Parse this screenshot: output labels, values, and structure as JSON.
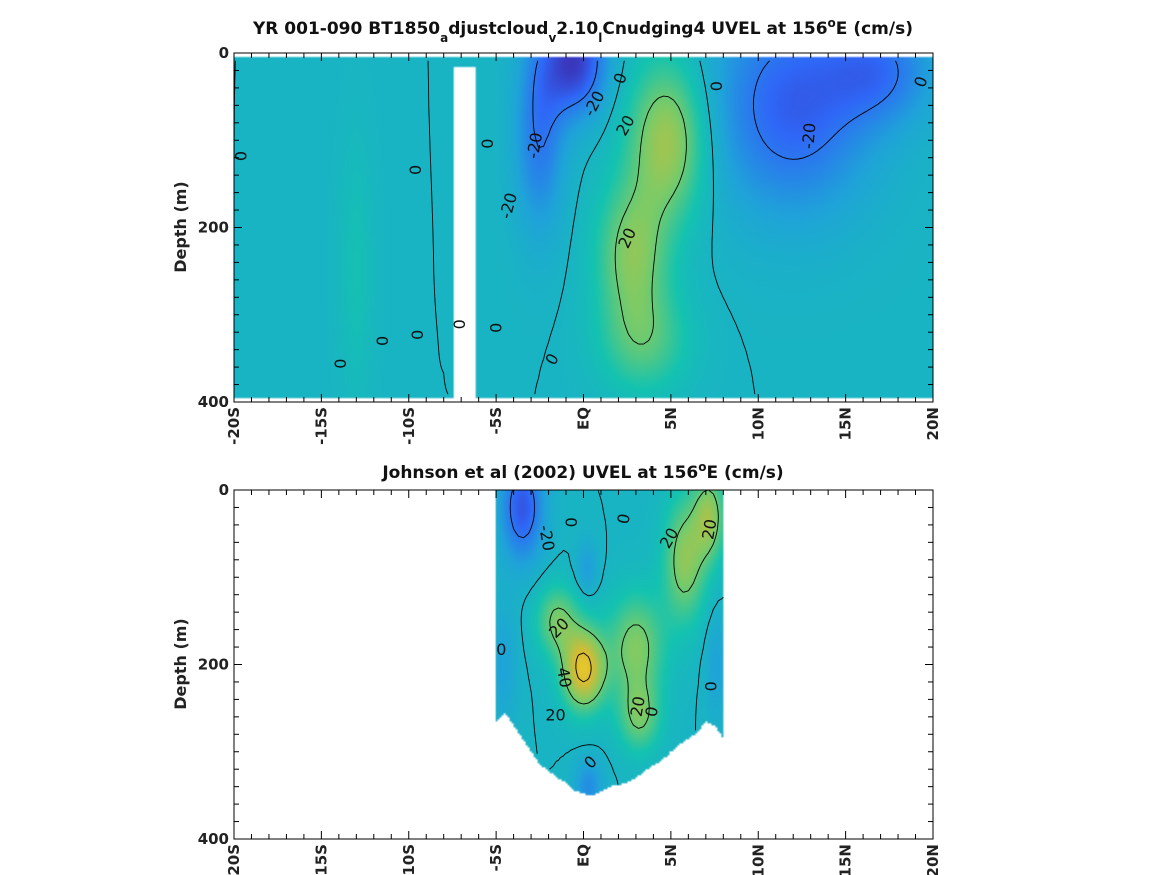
{
  "chart_data": [
    {
      "type": "heatmap",
      "title_parts": [
        "YR 001-090 BT1850",
        "a",
        "djustcloud",
        "v",
        "2.10",
        "l",
        "Cnudging4 UVEL at 156",
        "o",
        "E (cm/s)"
      ],
      "ylabel": "Depth (m)",
      "xlabel": "",
      "xlim": [
        -20,
        20
      ],
      "ylim": [
        0,
        400
      ],
      "x_ticks": [
        -20,
        -15,
        -10,
        -5,
        0,
        5,
        10,
        15,
        20
      ],
      "x_tick_labels": [
        "-20S",
        "-15S",
        "-10S",
        "-5S",
        "EQ",
        "5N",
        "10N",
        "15N",
        "20N"
      ],
      "y_ticks": [
        0,
        200,
        400
      ],
      "y_tick_labels": [
        "0",
        "200",
        "400"
      ],
      "grid": false,
      "data_coverage": {
        "lat_min": -20,
        "lat_max": 20,
        "depth_min": 5,
        "depth_max": 395
      },
      "gap": {
        "lat_min": -7.4,
        "lat_max": -6.2,
        "depth_min": 15,
        "depth_max": 400
      },
      "features": [
        {
          "kind": "max",
          "lat": 4.8,
          "depth": 100,
          "value": 30,
          "sx": 2.2,
          "sy": 90
        },
        {
          "kind": "max",
          "lat": 2.8,
          "depth": 230,
          "value": 24,
          "sx": 2.0,
          "sy": 80
        },
        {
          "kind": "max",
          "lat": 3.5,
          "depth": 330,
          "value": 16,
          "sx": 2.5,
          "sy": 60
        },
        {
          "kind": "min",
          "lat": -0.5,
          "depth": 10,
          "value": -34,
          "sx": 1.8,
          "sy": 60
        },
        {
          "kind": "min",
          "lat": -2.5,
          "depth": 90,
          "value": -20,
          "sx": 1.4,
          "sy": 110
        },
        {
          "kind": "min",
          "lat": 12,
          "depth": 60,
          "value": -26,
          "sx": 4.5,
          "sy": 120
        },
        {
          "kind": "min",
          "lat": 17,
          "depth": 20,
          "value": -18,
          "sx": 3.0,
          "sy": 60
        },
        {
          "kind": "max",
          "lat": -13,
          "depth": 250,
          "value": 6,
          "sx": 1.0,
          "sy": 150
        }
      ],
      "contour_labels": [
        {
          "text": "0",
          "lat": -19.6,
          "depth": 118,
          "rot": -90
        },
        {
          "text": "0",
          "lat": -9.6,
          "depth": 134,
          "rot": -90
        },
        {
          "text": "0",
          "lat": -13.9,
          "depth": 356,
          "rot": -90
        },
        {
          "text": "0",
          "lat": -11.5,
          "depth": 330,
          "rot": -90
        },
        {
          "text": "0",
          "lat": -9.5,
          "depth": 323,
          "rot": -90
        },
        {
          "text": "0",
          "lat": -7.1,
          "depth": 311,
          "rot": -90
        },
        {
          "text": "0",
          "lat": -5.0,
          "depth": 315,
          "rot": -90
        },
        {
          "text": "0",
          "lat": -5.5,
          "depth": 104,
          "rot": -90
        },
        {
          "text": "0",
          "lat": -1.8,
          "depth": 351,
          "rot": -60
        },
        {
          "text": "-20",
          "lat": -2.8,
          "depth": 106,
          "rot": -80
        },
        {
          "text": "-20",
          "lat": 0.6,
          "depth": 58,
          "rot": -62
        },
        {
          "text": "-20",
          "lat": -4.3,
          "depth": 175,
          "rot": -75
        },
        {
          "text": "0",
          "lat": 2.1,
          "depth": 29,
          "rot": -70
        },
        {
          "text": "20",
          "lat": 2.4,
          "depth": 83,
          "rot": -60
        },
        {
          "text": "20",
          "lat": 2.5,
          "depth": 212,
          "rot": -65
        },
        {
          "text": "0",
          "lat": 7.6,
          "depth": 38,
          "rot": -90
        },
        {
          "text": "-20",
          "lat": 12.9,
          "depth": 95,
          "rot": -85
        },
        {
          "text": "0",
          "lat": 19.3,
          "depth": 33,
          "rot": -70
        }
      ]
    },
    {
      "type": "heatmap",
      "title_parts": [
        "Johnson et al (2002) UVEL at 156",
        "o",
        "E (cm/s)"
      ],
      "ylabel": "Depth (m)",
      "xlabel": "",
      "xlim": [
        -20,
        20
      ],
      "ylim": [
        0,
        400
      ],
      "x_ticks": [
        -20,
        -15,
        -10,
        -5,
        0,
        5,
        10,
        15,
        20
      ],
      "x_tick_labels": [
        "-20S",
        "-15S",
        "-10S",
        "-5S",
        "EQ",
        "5N",
        "10N",
        "15N",
        "20N"
      ],
      "y_ticks": [
        0,
        200,
        400
      ],
      "y_tick_labels": [
        "0",
        "200",
        "400"
      ],
      "grid": false,
      "data_coverage": {
        "lat_min": -5,
        "lat_max": 8,
        "depth_min": 0,
        "depth_max": 350
      },
      "bottom_profile": [
        [
          -5,
          265
        ],
        [
          -4.5,
          255
        ],
        [
          -4,
          270
        ],
        [
          -3.5,
          285
        ],
        [
          -3,
          300
        ],
        [
          -2.5,
          315
        ],
        [
          -2,
          322
        ],
        [
          -1.5,
          330
        ],
        [
          -1,
          335
        ],
        [
          -0.5,
          345
        ],
        [
          0,
          348
        ],
        [
          0.5,
          350
        ],
        [
          1,
          345
        ],
        [
          1.5,
          340
        ],
        [
          2,
          338
        ],
        [
          2.5,
          335
        ],
        [
          3,
          330
        ],
        [
          3.5,
          322
        ],
        [
          4,
          315
        ],
        [
          4.5,
          310
        ],
        [
          5,
          300
        ],
        [
          5.5,
          292
        ],
        [
          6,
          285
        ],
        [
          6.5,
          278
        ],
        [
          7,
          265
        ],
        [
          7.5,
          270
        ],
        [
          8,
          285
        ]
      ],
      "features": [
        {
          "kind": "max",
          "lat": 0,
          "depth": 205,
          "value": 44,
          "sx": 1.2,
          "sy": 45
        },
        {
          "kind": "max",
          "lat": -1.5,
          "depth": 150,
          "value": 22,
          "sx": 1.2,
          "sy": 40
        },
        {
          "kind": "max",
          "lat": 3.0,
          "depth": 180,
          "value": 24,
          "sx": 1.6,
          "sy": 60
        },
        {
          "kind": "max",
          "lat": 5.8,
          "depth": 80,
          "value": 26,
          "sx": 1.2,
          "sy": 70
        },
        {
          "kind": "max",
          "lat": 7.2,
          "depth": 30,
          "value": 26,
          "sx": 0.9,
          "sy": 50
        },
        {
          "kind": "max",
          "lat": 3.2,
          "depth": 260,
          "value": 20,
          "sx": 1.2,
          "sy": 40
        },
        {
          "kind": "min",
          "lat": -3.5,
          "depth": 20,
          "value": -28,
          "sx": 1.2,
          "sy": 60
        },
        {
          "kind": "min",
          "lat": -4.6,
          "depth": 200,
          "value": -8,
          "sx": 0.8,
          "sy": 70
        },
        {
          "kind": "min",
          "lat": 0.2,
          "depth": 90,
          "value": -10,
          "sx": 0.6,
          "sy": 30
        },
        {
          "kind": "min",
          "lat": 7.6,
          "depth": 200,
          "value": -8,
          "sx": 0.6,
          "sy": 60
        },
        {
          "kind": "min",
          "lat": 0.3,
          "depth": 340,
          "value": -14,
          "sx": 0.8,
          "sy": 30
        }
      ],
      "contour_labels": [
        {
          "text": "-20",
          "lat": -2.1,
          "depth": 55,
          "rot": 80
        },
        {
          "text": "0",
          "lat": -0.7,
          "depth": 37,
          "rot": -90
        },
        {
          "text": "0",
          "lat": 2.3,
          "depth": 33,
          "rot": -80
        },
        {
          "text": "20",
          "lat": 4.9,
          "depth": 55,
          "rot": -60
        },
        {
          "text": "20",
          "lat": 7.2,
          "depth": 45,
          "rot": -80
        },
        {
          "text": "20",
          "lat": -1.4,
          "depth": 158,
          "rot": -45
        },
        {
          "text": "0",
          "lat": -4.7,
          "depth": 183,
          "rot": 0
        },
        {
          "text": "40",
          "lat": -1.1,
          "depth": 215,
          "rot": 80
        },
        {
          "text": "20",
          "lat": -1.6,
          "depth": 258,
          "rot": 0
        },
        {
          "text": "20",
          "lat": 3.1,
          "depth": 248,
          "rot": -80
        },
        {
          "text": "0",
          "lat": 3.9,
          "depth": 254,
          "rot": -80
        },
        {
          "text": "0",
          "lat": 7.3,
          "depth": 225,
          "rot": -90
        },
        {
          "text": "0",
          "lat": 0.4,
          "depth": 312,
          "rot": -45
        }
      ]
    }
  ],
  "colors": {
    "colormap": [
      "#3e26a8",
      "#2f67f7",
      "#1fa3d9",
      "#14c3b0",
      "#7dcb66",
      "#d8bb32",
      "#f9dc25"
    ],
    "axis": "#000000",
    "text": "#111111",
    "contour": "#000000"
  }
}
